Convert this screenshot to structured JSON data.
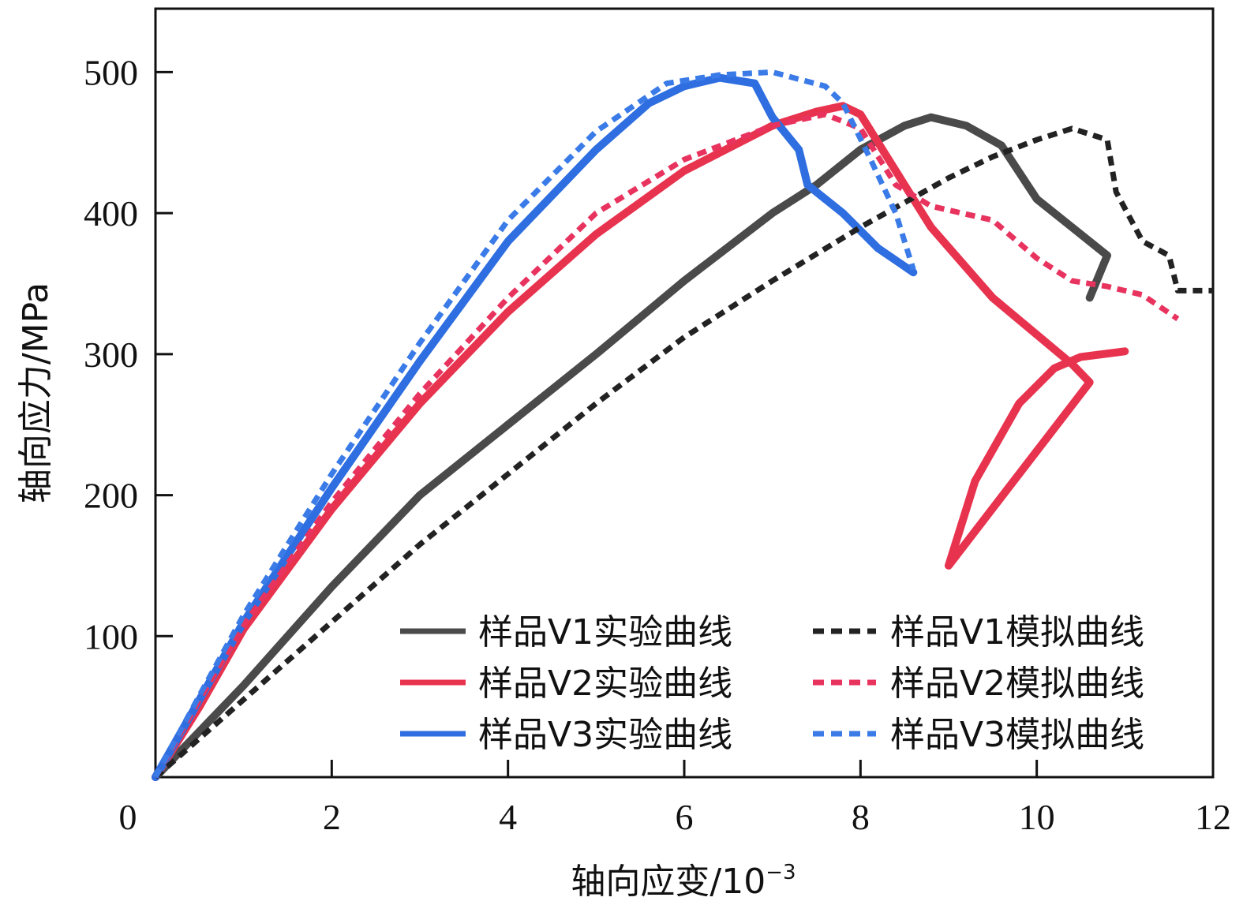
{
  "chart_data": {
    "type": "line",
    "xlabel": "轴向应变/10",
    "xlabel_sup": "−3",
    "ylabel": "轴向应力/MPa",
    "xlim": [
      0,
      12
    ],
    "ylim": [
      0,
      545
    ],
    "x_ticks": [
      0,
      2,
      4,
      6,
      8,
      10,
      12
    ],
    "y_ticks": [
      100,
      200,
      300,
      400,
      500
    ],
    "grid": false,
    "legend_position": "bottom-right, two columns",
    "series": [
      {
        "name": "样品V1实验曲线",
        "color": "#4a4a4a",
        "style": "solid",
        "points": [
          [
            0,
            0
          ],
          [
            1,
            65
          ],
          [
            2,
            135
          ],
          [
            3,
            200
          ],
          [
            4,
            250
          ],
          [
            5,
            300
          ],
          [
            6,
            352
          ],
          [
            7,
            400
          ],
          [
            7.5,
            420
          ],
          [
            8,
            445
          ],
          [
            8.5,
            462
          ],
          [
            8.8,
            468
          ],
          [
            9.2,
            462
          ],
          [
            9.6,
            448
          ],
          [
            10,
            410
          ],
          [
            10.4,
            390
          ],
          [
            10.8,
            370
          ],
          [
            10.6,
            340
          ]
        ]
      },
      {
        "name": "样品V2实验曲线",
        "color": "#e8334f",
        "style": "solid",
        "points": [
          [
            0,
            0
          ],
          [
            0.5,
            50
          ],
          [
            1,
            105
          ],
          [
            2,
            190
          ],
          [
            3,
            265
          ],
          [
            4,
            330
          ],
          [
            5,
            385
          ],
          [
            6,
            430
          ],
          [
            7,
            462
          ],
          [
            7.5,
            472
          ],
          [
            7.8,
            476
          ],
          [
            8,
            470
          ],
          [
            8.3,
            440
          ],
          [
            8.8,
            390
          ],
          [
            9.5,
            340
          ],
          [
            10.4,
            293
          ],
          [
            10.6,
            280
          ],
          [
            9.0,
            150
          ],
          [
            9.3,
            210
          ],
          [
            9.8,
            265
          ],
          [
            10.2,
            290
          ],
          [
            10.5,
            298
          ],
          [
            11,
            302
          ]
        ]
      },
      {
        "name": "样品V3实验曲线",
        "color": "#2e6ee0",
        "style": "solid",
        "points": [
          [
            0,
            0
          ],
          [
            0.5,
            55
          ],
          [
            1,
            110
          ],
          [
            2,
            205
          ],
          [
            3,
            295
          ],
          [
            4,
            380
          ],
          [
            5,
            445
          ],
          [
            5.6,
            478
          ],
          [
            6,
            490
          ],
          [
            6.4,
            496
          ],
          [
            6.8,
            492
          ],
          [
            7.0,
            468
          ],
          [
            7.3,
            445
          ],
          [
            7.4,
            420
          ],
          [
            7.8,
            400
          ],
          [
            8.2,
            375
          ],
          [
            8.6,
            358
          ]
        ]
      },
      {
        "name": "样品V1模拟曲线",
        "color": "#222222",
        "style": "dashed",
        "points": [
          [
            0,
            0
          ],
          [
            1,
            55
          ],
          [
            2,
            110
          ],
          [
            3,
            165
          ],
          [
            4,
            215
          ],
          [
            5,
            265
          ],
          [
            6,
            312
          ],
          [
            7,
            352
          ],
          [
            8,
            390
          ],
          [
            9,
            425
          ],
          [
            9.5,
            440
          ],
          [
            10,
            452
          ],
          [
            10.4,
            460
          ],
          [
            10.8,
            452
          ],
          [
            10.9,
            415
          ],
          [
            11.2,
            380
          ],
          [
            11.5,
            370
          ],
          [
            11.6,
            345
          ],
          [
            12,
            345
          ]
        ]
      },
      {
        "name": "样品V2模拟曲线",
        "color": "#e8335f",
        "style": "dashed",
        "points": [
          [
            0,
            0
          ],
          [
            0.5,
            55
          ],
          [
            1,
            108
          ],
          [
            2,
            195
          ],
          [
            3,
            272
          ],
          [
            4,
            340
          ],
          [
            5,
            400
          ],
          [
            6,
            438
          ],
          [
            7,
            462
          ],
          [
            7.6,
            470
          ],
          [
            8,
            460
          ],
          [
            8.4,
            420
          ],
          [
            8.8,
            405
          ],
          [
            9.5,
            395
          ],
          [
            10,
            368
          ],
          [
            10.4,
            352
          ],
          [
            10.8,
            348
          ],
          [
            11.2,
            342
          ],
          [
            11.6,
            325
          ]
        ]
      },
      {
        "name": "样品V3模拟曲线",
        "color": "#3a7be8",
        "style": "dashed",
        "points": [
          [
            0,
            0
          ],
          [
            0.5,
            58
          ],
          [
            1,
            115
          ],
          [
            2,
            215
          ],
          [
            3,
            308
          ],
          [
            4,
            395
          ],
          [
            5,
            458
          ],
          [
            5.8,
            492
          ],
          [
            6.4,
            498
          ],
          [
            7,
            500
          ],
          [
            7.6,
            490
          ],
          [
            7.8,
            478
          ],
          [
            8.1,
            440
          ],
          [
            8.4,
            400
          ],
          [
            8.6,
            360
          ]
        ]
      }
    ]
  }
}
